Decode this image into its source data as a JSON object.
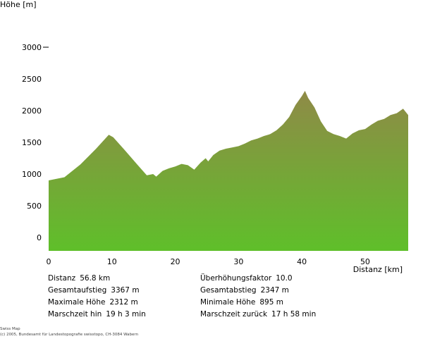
{
  "chart_data": {
    "type": "area",
    "ylabel": "Höhe [m]",
    "xlabel": "Distanz [km]",
    "xlim": [
      0,
      56.8
    ],
    "ylim": [
      -200,
      3100
    ],
    "x_ticks": [
      0,
      10,
      20,
      30,
      40,
      50
    ],
    "y_ticks": [
      0,
      500,
      1000,
      1500,
      2000,
      2500,
      3000
    ],
    "y_tick_labels": [
      "0",
      "500",
      "1000",
      "1500",
      "2000",
      "2500",
      "3000"
    ],
    "grid": false,
    "fill_top_color": "#8f8a47",
    "fill_bottom_color": "#5fbf2a",
    "x": [
      0,
      2.5,
      5,
      7.5,
      9.5,
      10.2,
      12,
      14,
      15.5,
      16.5,
      17,
      18,
      19,
      20,
      21,
      22,
      23,
      24,
      24.8,
      25.2,
      26,
      27,
      28,
      29,
      30,
      31,
      32,
      33,
      34,
      35,
      36,
      37,
      38,
      39,
      40,
      40.5,
      41,
      42,
      43,
      44,
      45,
      46,
      47,
      48,
      49,
      50,
      51,
      52,
      53,
      54,
      55,
      56,
      56.8
    ],
    "y": [
      900,
      950,
      1150,
      1400,
      1620,
      1580,
      1380,
      1150,
      980,
      1000,
      960,
      1050,
      1090,
      1120,
      1160,
      1140,
      1070,
      1180,
      1250,
      1200,
      1300,
      1370,
      1400,
      1420,
      1440,
      1480,
      1530,
      1560,
      1600,
      1630,
      1690,
      1780,
      1900,
      2090,
      2230,
      2312,
      2200,
      2050,
      1830,
      1680,
      1630,
      1600,
      1560,
      1640,
      1690,
      1710,
      1780,
      1840,
      1870,
      1930,
      1960,
      2030,
      1930
    ]
  },
  "stats": {
    "distance_label": "Distanz",
    "distance_value": "56.8 km",
    "ascent_label": "Gesamtaufstieg",
    "ascent_value": "3367 m",
    "max_label": "Maximale Höhe",
    "max_value": "2312 m",
    "time_out_label": "Marschzeit hin",
    "time_out_value": "19 h 3 min",
    "exaggeration_label": "Überhöhungsfaktor",
    "exaggeration_value": "10.0",
    "descent_label": "Gesamtabstieg",
    "descent_value": "2347 m",
    "min_label": "Minimale Höhe",
    "min_value": "895 m",
    "time_back_label": "Marschzeit zurück",
    "time_back_value": "17 h 58 min"
  },
  "credit": {
    "line1": "Swiss Map",
    "line2": "(c) 2005, Bundesamt für Landestopografie swisstopo, CH-3084 Wabern"
  }
}
